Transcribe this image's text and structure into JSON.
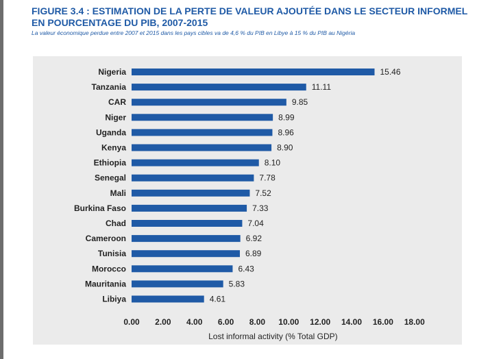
{
  "header": {
    "title": "FIGURE 3.4 : ESTIMATION DE LA PERTE DE VALEUR AJOUTÉE DANS LE SECTEUR INFORMEL EN POURCENTAGE DU PIB, 2007-2015",
    "subtitle": "La valeur économique perdue entre 2007 et 2015 dans les pays cibles va de 4,6 % du PIB en Libye à 15 % du PIB au Nigéria"
  },
  "colors": {
    "bar": "#1f5aa6",
    "panel": "#ebebeb",
    "title": "#1f5aa6"
  },
  "chart_data": {
    "type": "bar",
    "orientation": "horizontal",
    "title": "FIGURE 3.4 : ESTIMATION DE LA PERTE DE VALEUR AJOUTÉE DANS LE SECTEUR INFORMEL EN POURCENTAGE DU PIB, 2007-2015",
    "subtitle": "La valeur économique perdue entre 2007 et 2015 dans les pays cibles va de 4,6 % du PIB en Libye à 15 % du PIB au Nigéria",
    "xlabel": "Lost informal activity (% Total GDP)",
    "ylabel": "",
    "xlim": [
      0,
      18
    ],
    "xticks": [
      "0.00",
      "2.00",
      "4.00",
      "6.00",
      "8.00",
      "10.00",
      "12.00",
      "14.00",
      "16.00",
      "18.00"
    ],
    "grid": false,
    "legend": "none",
    "categories": [
      "Nigeria",
      "Tanzania",
      "CAR",
      "Niger",
      "Uganda",
      "Kenya",
      "Ethiopia",
      "Senegal",
      "Mali",
      "Burkina Faso",
      "Chad",
      "Cameroon",
      "Tunisia",
      "Morocco",
      "Mauritania",
      "Libiya"
    ],
    "values": [
      15.46,
      11.11,
      9.85,
      8.99,
      8.96,
      8.9,
      8.1,
      7.78,
      7.52,
      7.33,
      7.04,
      6.92,
      6.89,
      6.43,
      5.83,
      4.61
    ],
    "value_labels": [
      "15.46",
      "11.11",
      "9.85",
      "8.99",
      "8.96",
      "8.90",
      "8.10",
      "7.78",
      "7.52",
      "7.33",
      "7.04",
      "6.92",
      "6.89",
      "6.43",
      "5.83",
      "4.61"
    ]
  }
}
